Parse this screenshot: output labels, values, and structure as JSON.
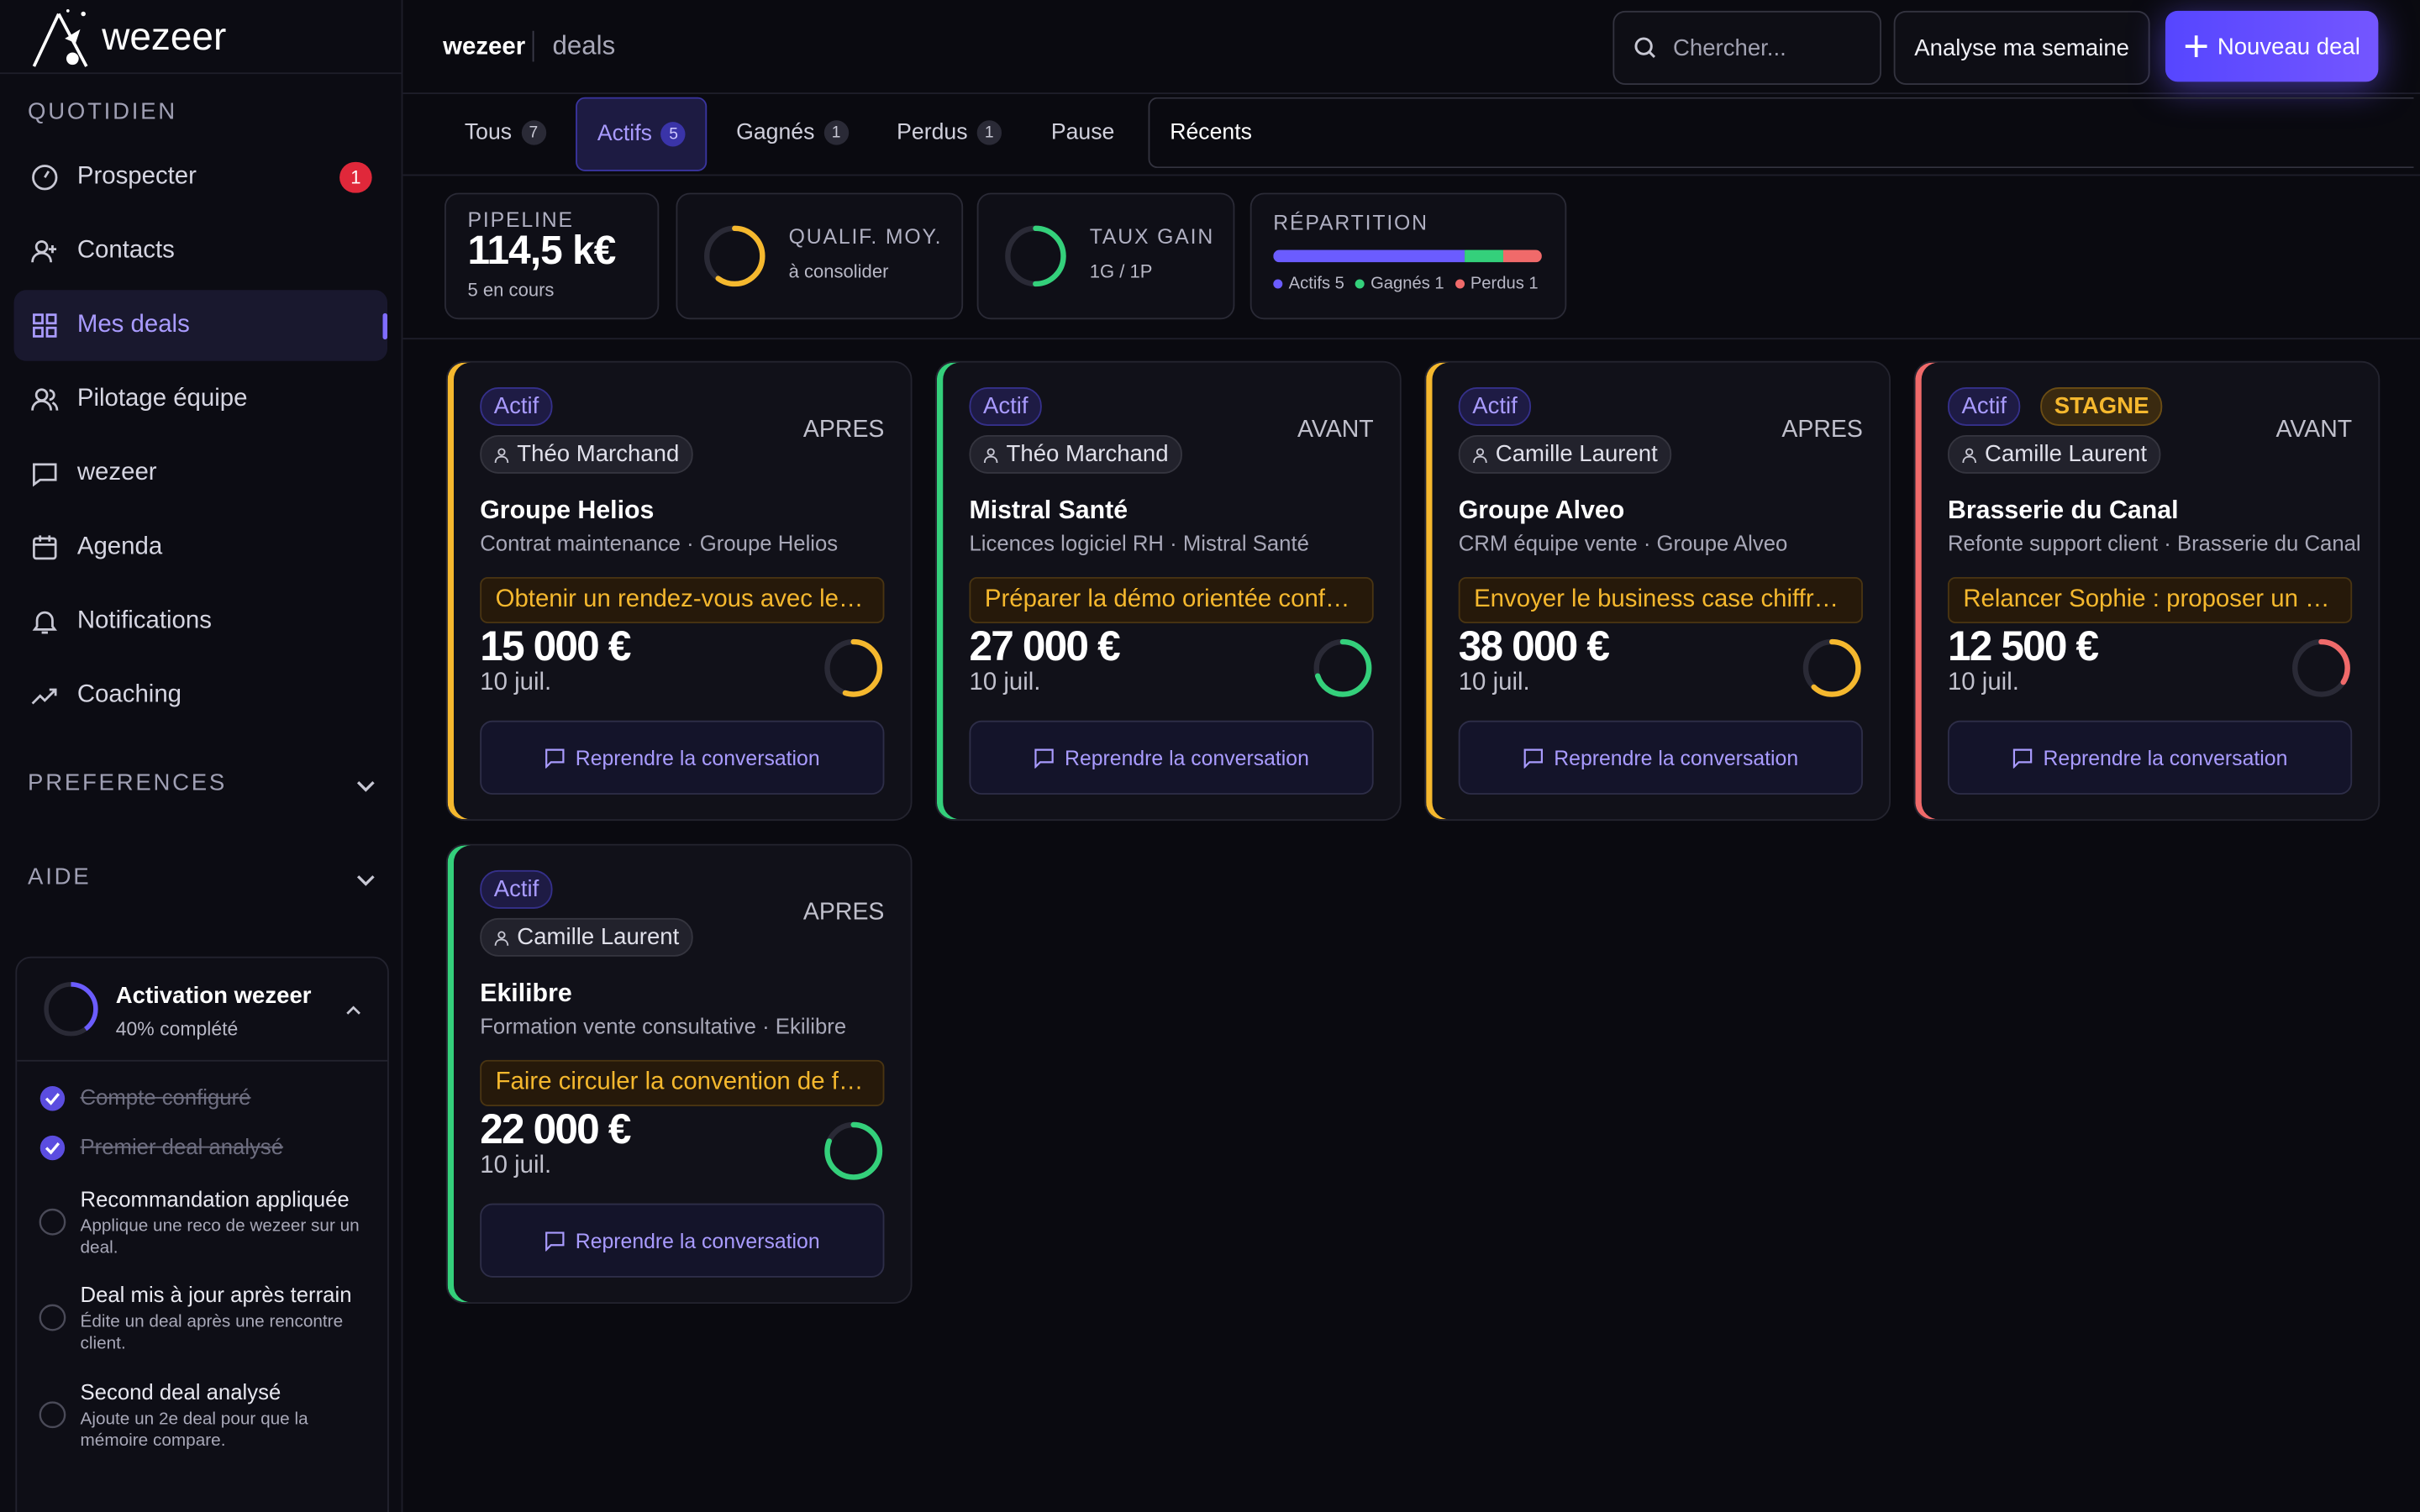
{
  "sidebar": {
    "logo": "wezeer",
    "section_daily": "QUOTIDIEN",
    "nav": [
      {
        "label": "Prospecter",
        "badge": "1"
      },
      {
        "label": "Contacts"
      },
      {
        "label": "Mes deals",
        "active": true
      },
      {
        "label": "Pilotage équipe"
      },
      {
        "label": "wezeer"
      },
      {
        "label": "Agenda"
      },
      {
        "label": "Notifications"
      },
      {
        "label": "Coaching"
      }
    ],
    "section_preferences": "PREFERENCES",
    "section_help": "AIDE",
    "activation": {
      "progress": "2/5",
      "title": "Activation wezeer",
      "subtitle": "40% complété",
      "items": [
        {
          "label": "Compte configuré",
          "done": true
        },
        {
          "label": "Premier deal analysé",
          "done": true
        },
        {
          "label": "Recommandation appliquée",
          "description": "Applique une reco de wezeer sur un deal.",
          "done": false
        },
        {
          "label": "Deal mis à jour après terrain",
          "description": "Édite un deal après une rencontre client.",
          "done": false
        },
        {
          "label": "Second deal analysé",
          "description": "Ajoute un 2e deal pour que la mémoire compare.",
          "done": false
        }
      ]
    }
  },
  "header": {
    "brand": "wezeer",
    "page": "deals",
    "search_placeholder": "Chercher...",
    "analyze_button": "Analyse ma semaine",
    "new_button": "Nouveau deal"
  },
  "tabs": [
    {
      "label": "Tous",
      "count": 7
    },
    {
      "label": "Actifs",
      "count": 5,
      "active": true
    },
    {
      "label": "Gagnés",
      "count": 1
    },
    {
      "label": "Perdus",
      "count": 1
    },
    {
      "label": "Pause"
    },
    {
      "label": "Récents"
    }
  ],
  "stats": {
    "pipeline": {
      "label": "PIPELINE",
      "value": "114,5 k€",
      "sub": "5 en cours"
    },
    "qualification": {
      "score": 60,
      "label": "QUALIF. MOY.",
      "sub": "à consolider",
      "color": "#f5b82e"
    },
    "win_rate": {
      "score": 50,
      "label": "TAUX GAIN",
      "sub": "1G / 1P",
      "color": "#34d07b"
    },
    "split": {
      "label": "RÉPARTITION",
      "parts": [
        {
          "name": "Actifs",
          "count": 5,
          "color": "#6b5cff"
        },
        {
          "name": "Gagnés",
          "count": 1,
          "color": "#34d07b"
        },
        {
          "name": "Perdus",
          "count": 1,
          "color": "#f06a6a"
        }
      ]
    }
  },
  "deals": [
    {
      "status": "Actif",
      "owner": "Théo Marchand",
      "phase": "APRES",
      "name": "Groupe Helios",
      "description": "Contrat maintenance · Groupe Helios",
      "action": "Obtenir un rendez-vous avec le…",
      "amount": "15 000 €",
      "date": "10 juil.",
      "score": 55,
      "color": "#f5b82e",
      "button": "Reprendre la conversation"
    },
    {
      "status": "Actif",
      "owner": "Théo Marchand",
      "phase": "AVANT",
      "name": "Mistral Santé",
      "description": "Licences logiciel RH · Mistral Santé",
      "action": "Préparer la démo orientée conf…",
      "amount": "27 000 €",
      "date": "10 juil.",
      "score": 70,
      "color": "#34d07b",
      "button": "Reprendre la conversation"
    },
    {
      "status": "Actif",
      "owner": "Camille Laurent",
      "phase": "APRES",
      "name": "Groupe Alveo",
      "description": "CRM équipe vente · Groupe Alveo",
      "action": "Envoyer le business case chiffr…",
      "amount": "38 000 €",
      "date": "10 juil.",
      "score": 62,
      "color": "#f5b82e",
      "button": "Reprendre la conversation"
    },
    {
      "status": "Actif",
      "flag": "STAGNE",
      "owner": "Camille Laurent",
      "phase": "AVANT",
      "name": "Brasserie du Canal",
      "description": "Refonte support client · Brasserie du Canal",
      "action": "Relancer Sophie : proposer un …",
      "amount": "12 500 €",
      "date": "10 juil.",
      "score": 34,
      "color": "#f06a6a",
      "button": "Reprendre la conversation"
    },
    {
      "status": "Actif",
      "owner": "Camille Laurent",
      "phase": "APRES",
      "name": "Ekilibre",
      "description": "Formation vente consultative · Ekilibre",
      "action": "Faire circuler la convention de f…",
      "amount": "22 000 €",
      "date": "10 juil.",
      "score": 81,
      "color": "#34d07b",
      "button": "Reprendre la conversation"
    }
  ]
}
